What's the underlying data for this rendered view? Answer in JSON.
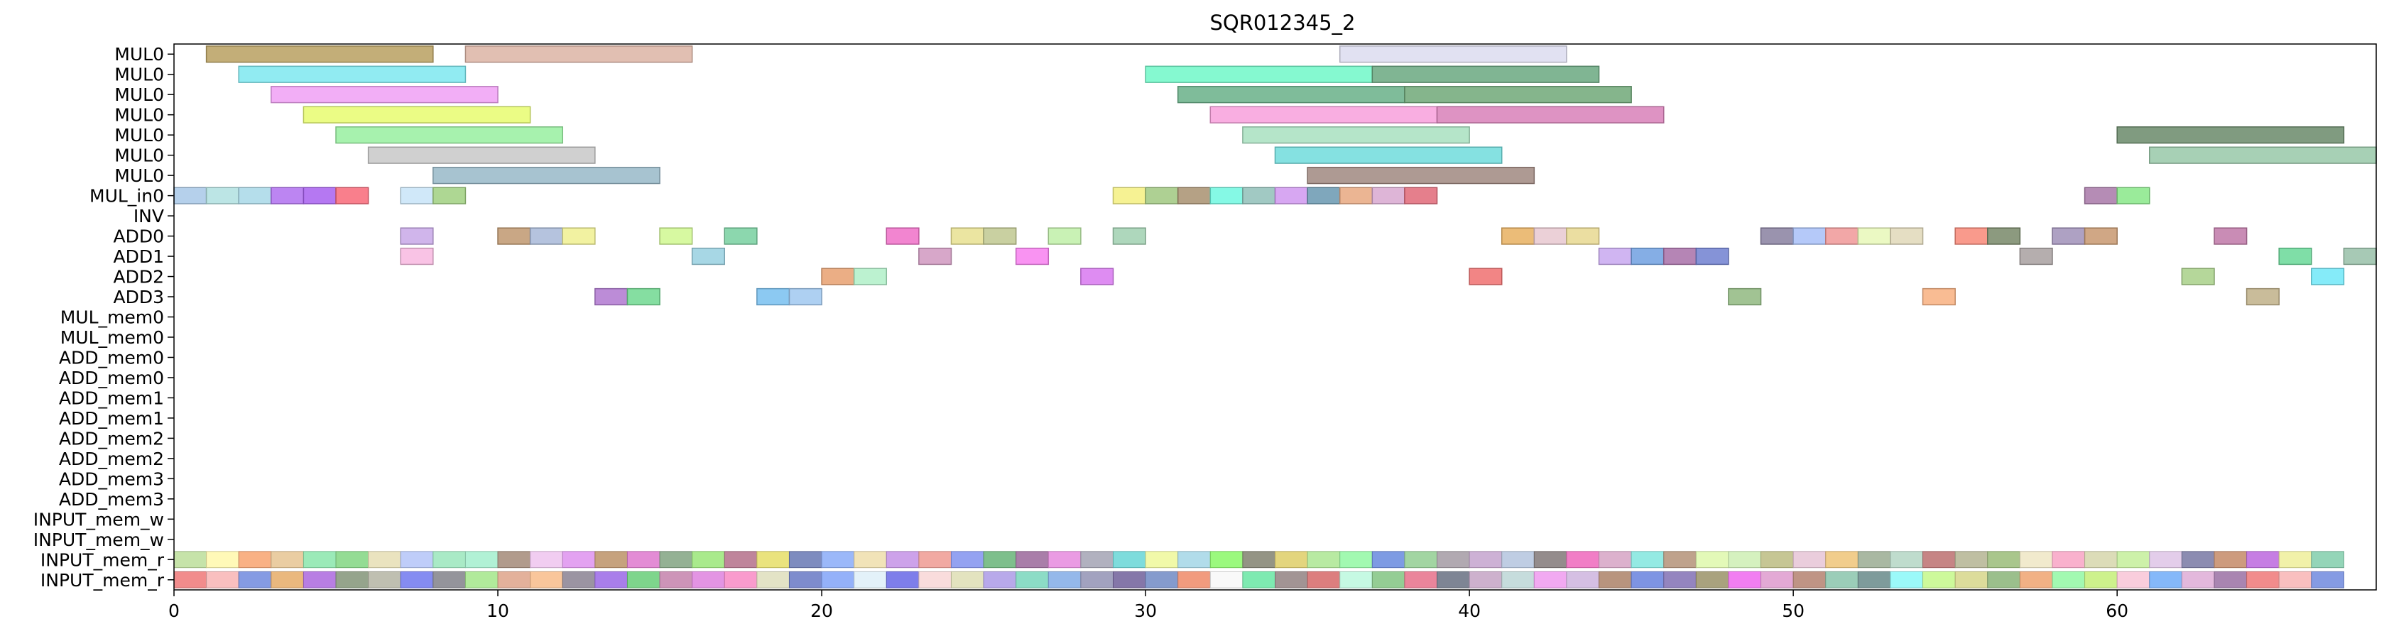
{
  "chart_data": {
    "type": "gantt",
    "title": "SQR012345_2",
    "xlabel": "",
    "ylabel": "",
    "xlim": [
      0,
      68
    ],
    "xticks": [
      0,
      10,
      20,
      30,
      40,
      50,
      60
    ],
    "grid": false,
    "rows": [
      "MUL0",
      "MUL0",
      "MUL0",
      "MUL0",
      "MUL0",
      "MUL0",
      "MUL0",
      "MUL_in0",
      "INV",
      "ADD0",
      "ADD1",
      "ADD2",
      "ADD3",
      "MUL_mem0",
      "MUL_mem0",
      "ADD_mem0",
      "ADD_mem0",
      "ADD_mem1",
      "ADD_mem1",
      "ADD_mem2",
      "ADD_mem2",
      "ADD_mem3",
      "ADD_mem3",
      "INPUT_mem_w",
      "INPUT_mem_w",
      "INPUT_mem_r",
      "INPUT_mem_r"
    ],
    "tasks": [
      {
        "row": 0,
        "start": 1,
        "end": 8,
        "color": "#b8a060"
      },
      {
        "row": 0,
        "start": 9,
        "end": 16,
        "color": "#dcb4a4"
      },
      {
        "row": 0,
        "start": 36,
        "end": 43,
        "color": "#dcdcf0"
      },
      {
        "row": 1,
        "start": 2,
        "end": 9,
        "color": "#7ee8f0"
      },
      {
        "row": 1,
        "start": 30,
        "end": 37,
        "color": "#70f8c8"
      },
      {
        "row": 1,
        "start": 37,
        "end": 44,
        "color": "#6aa880"
      },
      {
        "row": 2,
        "start": 3,
        "end": 10,
        "color": "#f0a0f4"
      },
      {
        "row": 2,
        "start": 31,
        "end": 38,
        "color": "#68b088"
      },
      {
        "row": 2,
        "start": 38,
        "end": 45,
        "color": "#70a878"
      },
      {
        "row": 3,
        "start": 4,
        "end": 11,
        "color": "#e8fc70"
      },
      {
        "row": 3,
        "start": 32,
        "end": 39,
        "color": "#f8a0dc"
      },
      {
        "row": 3,
        "start": 39,
        "end": 46,
        "color": "#d880b8"
      },
      {
        "row": 4,
        "start": 5,
        "end": 12,
        "color": "#98f0a0"
      },
      {
        "row": 4,
        "start": 33,
        "end": 40,
        "color": "#a8e0c0"
      },
      {
        "row": 4,
        "start": 60,
        "end": 67,
        "color": "#6a8a6a"
      },
      {
        "row": 5,
        "start": 6,
        "end": 13,
        "color": "#c8c8c8"
      },
      {
        "row": 5,
        "start": 34,
        "end": 41,
        "color": "#70dcdc"
      },
      {
        "row": 5,
        "start": 61,
        "end": 68,
        "color": "#98c8a8"
      },
      {
        "row": 6,
        "start": 8,
        "end": 15,
        "color": "#98b8c8"
      },
      {
        "row": 6,
        "start": 35,
        "end": 42,
        "color": "#a08880"
      },
      {
        "row": 7,
        "start": 0,
        "end": 1,
        "color": "#a8c8e8"
      },
      {
        "row": 7,
        "start": 1,
        "end": 2,
        "color": "#b0e0e0"
      },
      {
        "row": 7,
        "start": 2,
        "end": 3,
        "color": "#a8d8e8"
      },
      {
        "row": 7,
        "start": 3,
        "end": 4,
        "color": "#b070f0"
      },
      {
        "row": 7,
        "start": 4,
        "end": 5,
        "color": "#a860f0"
      },
      {
        "row": 7,
        "start": 5,
        "end": 6,
        "color": "#f86878"
      },
      {
        "row": 7,
        "start": 7,
        "end": 8,
        "color": "#c8e4f8"
      },
      {
        "row": 7,
        "start": 8,
        "end": 9,
        "color": "#a0d080"
      },
      {
        "row": 7,
        "start": 29,
        "end": 30,
        "color": "#f4f080"
      },
      {
        "row": 7,
        "start": 30,
        "end": 31,
        "color": "#a0c880"
      },
      {
        "row": 7,
        "start": 31,
        "end": 32,
        "color": "#a89070"
      },
      {
        "row": 7,
        "start": 32,
        "end": 33,
        "color": "#70f8e0"
      },
      {
        "row": 7,
        "start": 33,
        "end": 34,
        "color": "#90c0b8"
      },
      {
        "row": 7,
        "start": 34,
        "end": 35,
        "color": "#d098f0"
      },
      {
        "row": 7,
        "start": 35,
        "end": 36,
        "color": "#6898b0"
      },
      {
        "row": 7,
        "start": 36,
        "end": 37,
        "color": "#e8a880"
      },
      {
        "row": 7,
        "start": 37,
        "end": 38,
        "color": "#d8a8d0"
      },
      {
        "row": 7,
        "start": 38,
        "end": 39,
        "color": "#e06878"
      },
      {
        "row": 7,
        "start": 59,
        "end": 60,
        "color": "#a878a8"
      },
      {
        "row": 7,
        "start": 60,
        "end": 61,
        "color": "#88e888"
      },
      {
        "row": 9,
        "start": 7,
        "end": 8,
        "color": "#c8a8e8"
      },
      {
        "row": 9,
        "start": 10,
        "end": 11,
        "color": "#c09870"
      },
      {
        "row": 9,
        "start": 11,
        "end": 12,
        "color": "#a8b8d8"
      },
      {
        "row": 9,
        "start": 12,
        "end": 13,
        "color": "#f0f090"
      },
      {
        "row": 9,
        "start": 15,
        "end": 16,
        "color": "#d0f890"
      },
      {
        "row": 9,
        "start": 17,
        "end": 18,
        "color": "#78d0a0"
      },
      {
        "row": 9,
        "start": 22,
        "end": 23,
        "color": "#f070c8"
      },
      {
        "row": 9,
        "start": 24,
        "end": 25,
        "color": "#e8e090"
      },
      {
        "row": 9,
        "start": 25,
        "end": 26,
        "color": "#c0c890"
      },
      {
        "row": 9,
        "start": 27,
        "end": 28,
        "color": "#c0f0a8"
      },
      {
        "row": 9,
        "start": 29,
        "end": 30,
        "color": "#a0d0b0"
      },
      {
        "row": 9,
        "start": 41,
        "end": 42,
        "color": "#e8b060"
      },
      {
        "row": 9,
        "start": 42,
        "end": 43,
        "color": "#e8c8d0"
      },
      {
        "row": 9,
        "start": 43,
        "end": 44,
        "color": "#e8d890"
      },
      {
        "row": 9,
        "start": 49,
        "end": 50,
        "color": "#8880a0"
      },
      {
        "row": 9,
        "start": 50,
        "end": 51,
        "color": "#a8c0f8"
      },
      {
        "row": 9,
        "start": 51,
        "end": 52,
        "color": "#f09898"
      },
      {
        "row": 9,
        "start": 52,
        "end": 53,
        "color": "#e8f8b8"
      },
      {
        "row": 9,
        "start": 53,
        "end": 54,
        "color": "#e0d8b8"
      },
      {
        "row": 9,
        "start": 55,
        "end": 56,
        "color": "#f88878"
      },
      {
        "row": 9,
        "start": 56,
        "end": 57,
        "color": "#788868"
      },
      {
        "row": 9,
        "start": 58,
        "end": 59,
        "color": "#a090b8"
      },
      {
        "row": 9,
        "start": 59,
        "end": 60,
        "color": "#c89870"
      },
      {
        "row": 9,
        "start": 63,
        "end": 64,
        "color": "#c078a8"
      },
      {
        "row": 10,
        "start": 7,
        "end": 8,
        "color": "#f8b8e0"
      },
      {
        "row": 10,
        "start": 16,
        "end": 17,
        "color": "#98d0e0"
      },
      {
        "row": 10,
        "start": 23,
        "end": 24,
        "color": "#d098c0"
      },
      {
        "row": 10,
        "start": 26,
        "end": 27,
        "color": "#f880f0"
      },
      {
        "row": 10,
        "start": 44,
        "end": 45,
        "color": "#c8a8f0"
      },
      {
        "row": 10,
        "start": 45,
        "end": 46,
        "color": "#70a0e0"
      },
      {
        "row": 10,
        "start": 46,
        "end": 47,
        "color": "#a870a8"
      },
      {
        "row": 10,
        "start": 47,
        "end": 48,
        "color": "#7080d0"
      },
      {
        "row": 10,
        "start": 57,
        "end": 58,
        "color": "#a8a0a0"
      },
      {
        "row": 10,
        "start": 65,
        "end": 66,
        "color": "#68d898"
      },
      {
        "row": 10,
        "start": 67,
        "end": 68,
        "color": "#98c0a8"
      },
      {
        "row": 11,
        "start": 20,
        "end": 21,
        "color": "#e8a070"
      },
      {
        "row": 11,
        "start": 21,
        "end": 22,
        "color": "#b0f0c8"
      },
      {
        "row": 11,
        "start": 28,
        "end": 29,
        "color": "#d878f0"
      },
      {
        "row": 11,
        "start": 40,
        "end": 41,
        "color": "#f07070"
      },
      {
        "row": 11,
        "start": 62,
        "end": 63,
        "color": "#a8d088"
      },
      {
        "row": 11,
        "start": 66,
        "end": 67,
        "color": "#70e8f8"
      },
      {
        "row": 12,
        "start": 13,
        "end": 14,
        "color": "#b078d0"
      },
      {
        "row": 12,
        "start": 14,
        "end": 15,
        "color": "#70d890"
      },
      {
        "row": 12,
        "start": 18,
        "end": 19,
        "color": "#78c0f0"
      },
      {
        "row": 12,
        "start": 19,
        "end": 20,
        "color": "#a0c8f0"
      },
      {
        "row": 12,
        "start": 48,
        "end": 49,
        "color": "#90b880"
      },
      {
        "row": 12,
        "start": 54,
        "end": 55,
        "color": "#f8b080"
      },
      {
        "row": 12,
        "start": 64,
        "end": 65,
        "color": "#c0b088"
      }
    ],
    "stripes": [
      {
        "row": 25,
        "start": 0,
        "end": 67,
        "colors": [
          "#c0e0a0",
          "#fff8b0",
          "#f8a878",
          "#e8c898",
          "#90e8b0",
          "#88d888",
          "#e8e0b8",
          "#b8c8f8",
          "#a0e8c0",
          "#a8f0d0",
          "#a89080",
          "#f0c8f0",
          "#e098f0",
          "#c09870",
          "#e080d0",
          "#88a888",
          "#a0e880",
          "#b87890",
          "#e8e070",
          "#7080b8",
          "#90b0f8",
          "#f0e0b0",
          "#c898e8",
          "#f0a098",
          "#8898f0",
          "#70b880",
          "#a070a0",
          "#e890e0",
          "#a8a8b8",
          "#70d8d8",
          "#f0f8a0",
          "#a8d8e8",
          "#90f870",
          "#888878",
          "#e0d070",
          "#b0e898",
          "#98f8a8",
          "#7090e0",
          "#98d098",
          "#a8a0a8",
          "#c8a8d0",
          "#b8c8e0",
          "#888080",
          "#f070c0",
          "#d8a8c8",
          "#88e8e0",
          "#b89880",
          "#e0f8b0",
          "#d0f0b8",
          "#c0c088",
          "#e8c8d8",
          "#f0c880",
          "#a0b098",
          "#b8d8c8",
          "#c07878",
          "#b8b898",
          "#a0c080",
          "#f0e8c8",
          "#f8a8c8",
          "#d8d8b0",
          "#c8f0a0",
          "#e0c8e8",
          "#8080a8",
          "#c89070",
          "#c070e0",
          "#f0f0a0",
          "#88d0b0",
          "#88e8b0"
        ]
      },
      {
        "row": 26,
        "start": 0,
        "end": 67,
        "colors": [
          "#f08080",
          "#f8b8b8",
          "#7890e0",
          "#e8b070",
          "#b070e0",
          "#8a9a80",
          "#b8b8a8",
          "#7880f0",
          "#888890",
          "#a8e890",
          "#e0a890",
          "#f8c090",
          "#908898",
          "#a070e8",
          "#70d080",
          "#c888b0",
          "#e088e0",
          "#f890c8",
          "#e0e0c0",
          "#7080c8",
          "#88a8f8",
          "#e0f0f8",
          "#7070e8",
          "#f8d8d8",
          "#e0e0b8",
          "#b0a0e8",
          "#80d8c0",
          "#88b0e8",
          "#9898b8",
          "#7868a0",
          "#7890c8",
          "#f09070",
          "#f8f8f8",
          "#70e8a8",
          "#988888",
          "#d87070",
          "#c0f8e0",
          "#88c888",
          "#e87890",
          "#707888",
          "#c8a8c8",
          "#c0d8d8",
          "#f0a0f0",
          "#d0b8e0",
          "#b08870",
          "#7088e0",
          "#8878b8",
          "#a09870",
          "#f070f0",
          "#e0a0d0",
          "#b88878",
          "#90c8b0",
          "#709090",
          "#90f8f8",
          "#c8f890",
          "#d8d890",
          "#90b880",
          "#f0a878",
          "#98f8a8",
          "#c8f080",
          "#f8c8d8",
          "#78b0f8",
          "#e0b0d8",
          "#a078a8"
        ]
      }
    ]
  }
}
